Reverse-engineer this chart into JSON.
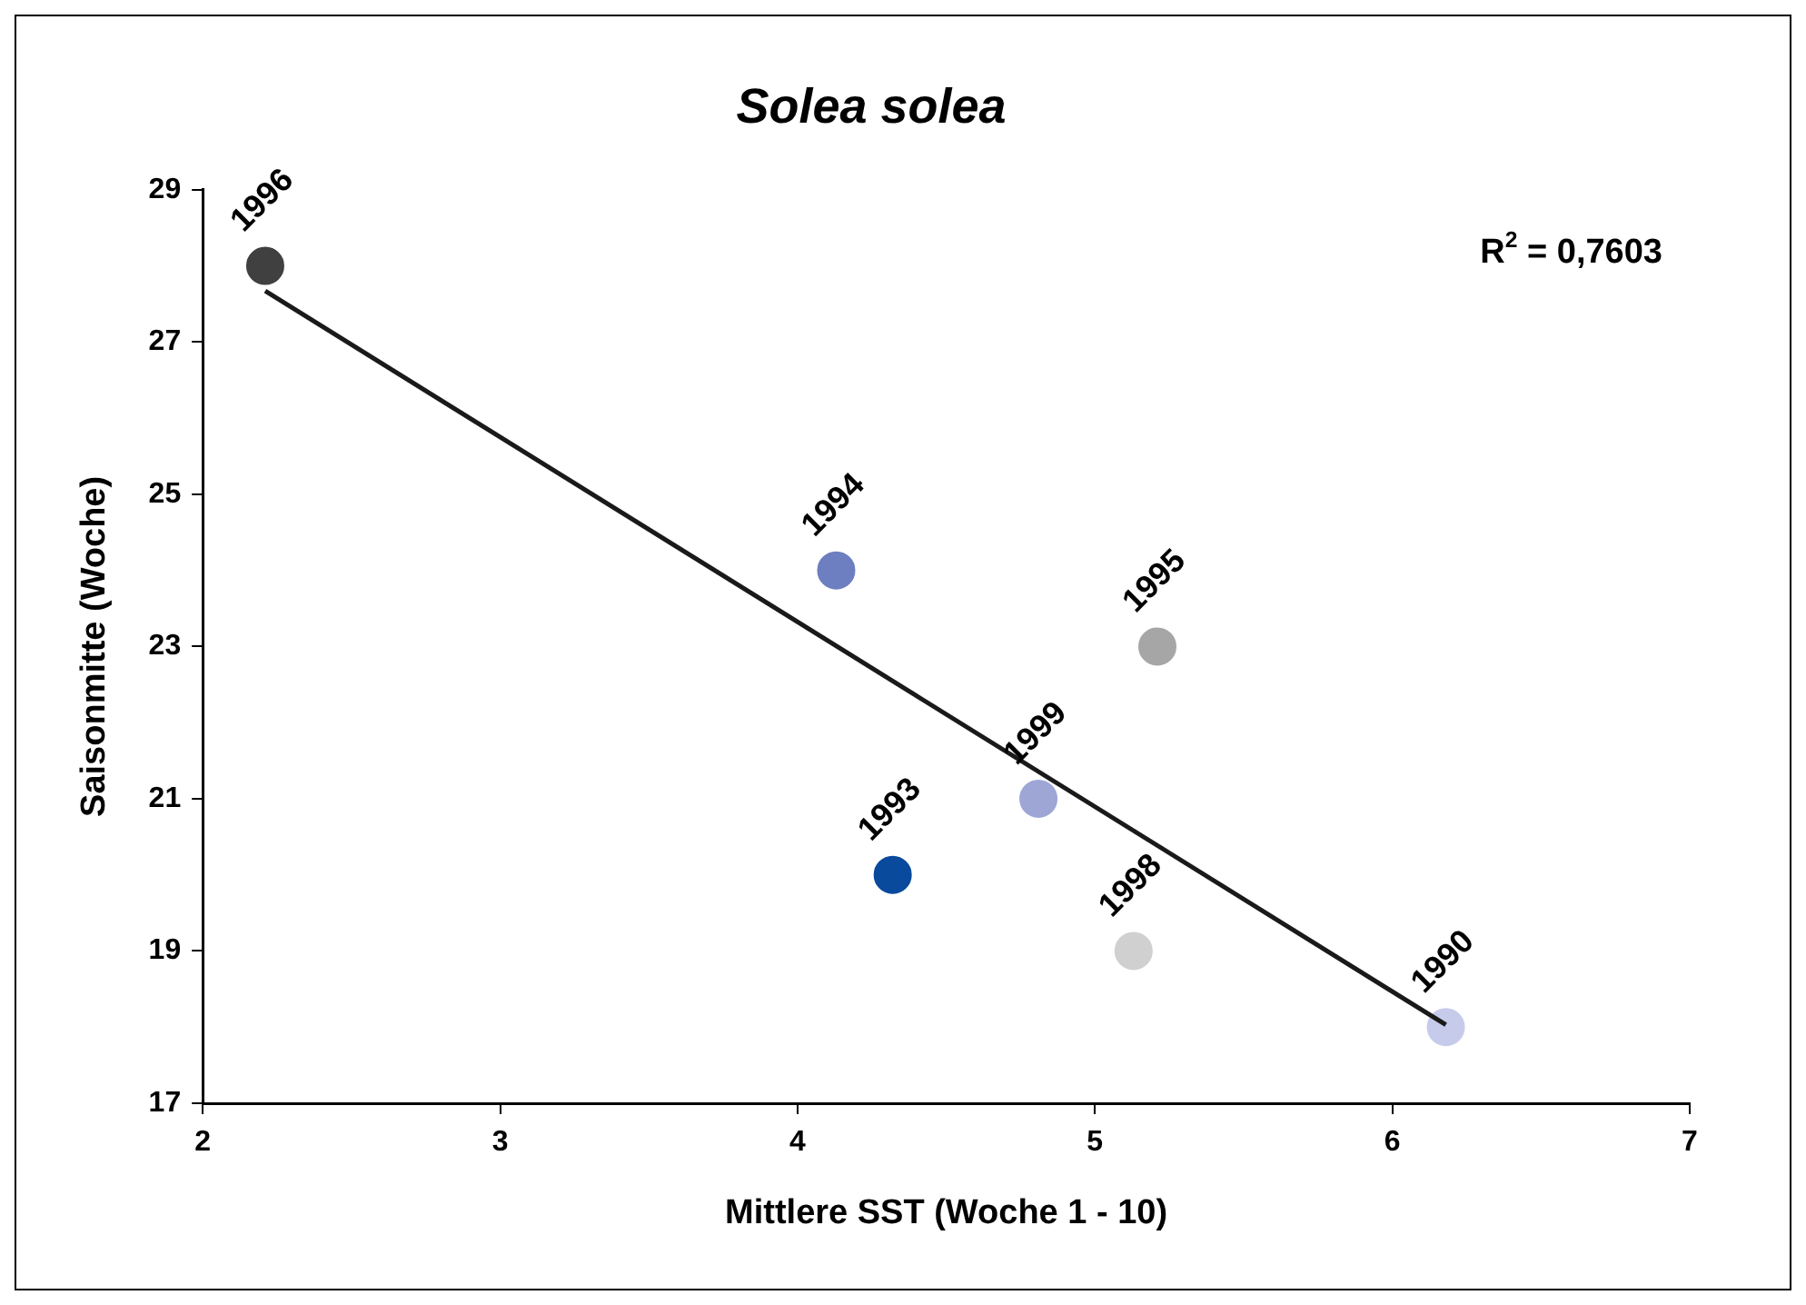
{
  "chart_data": {
    "type": "scatter",
    "title": "Solea solea",
    "xlabel": "Mittlere SST (Woche 1 - 10)",
    "ylabel": "Saisonmitte (Woche)",
    "xlim": [
      2,
      7
    ],
    "xticks": [
      2,
      3,
      4,
      5,
      6,
      7
    ],
    "ylim": [
      17,
      29
    ],
    "yticks": [
      17,
      19,
      21,
      23,
      25,
      27,
      29
    ],
    "grid": false,
    "legend": false,
    "marker": "circle",
    "series": [
      {
        "x": [
          2.21,
          4.13,
          5.21,
          4.81,
          4.32,
          5.13,
          6.18
        ],
        "values": [
          28,
          24,
          23,
          21,
          20,
          19,
          18
        ],
        "colors": [
          "#404040",
          "#6d7fc0",
          "#a6a6a6",
          "#9ea6d6",
          "#0a4a9c",
          "#d0d0d0",
          "#c7cbeb"
        ]
      },
      {
        "type": "line",
        "x": [
          2.21,
          6.18
        ],
        "values": [
          27.67,
          18.03
        ],
        "color": "#1a1a1a",
        "marker": "none"
      }
    ],
    "annotations": [
      {
        "text": "1996",
        "x": 2.21,
        "y": 28
      },
      {
        "text": "1994",
        "x": 4.13,
        "y": 24
      },
      {
        "text": "1995",
        "x": 5.21,
        "y": 23
      },
      {
        "text": "1999",
        "x": 4.81,
        "y": 21
      },
      {
        "text": "1993",
        "x": 4.32,
        "y": 20
      },
      {
        "text": "1998",
        "x": 5.13,
        "y": 19
      },
      {
        "text": "1990",
        "x": 6.18,
        "y": 18
      },
      "R$^{2}$ = 0,7603"
    ]
  }
}
